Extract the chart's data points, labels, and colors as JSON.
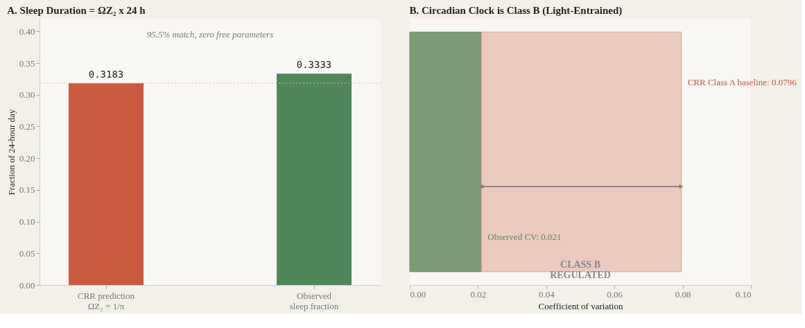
{
  "chart_data": [
    {
      "type": "bar",
      "title": "A.  Sleep Duration = ΩZ₂ x 24 h",
      "ylabel": "Fraction of 24-hour day",
      "categories": [
        "CRR prediction\nΩZ₂ = 1/π",
        "Observed\nsleep fraction"
      ],
      "values": [
        0.3183,
        0.3333
      ],
      "colors": [
        "#c95a3f",
        "#4f865c"
      ],
      "data_labels": true,
      "ylim": [
        0,
        0.42
      ],
      "yticks": [
        {
          "value": 0,
          "label": "0.00"
        },
        0.05,
        {
          "value": 0.1,
          "label": "0.10"
        },
        0.15,
        {
          "value": 0.2,
          "label": "0.20"
        },
        0.25,
        {
          "value": 0.3,
          "label": "0.30"
        },
        0.35,
        {
          "value": 0.4,
          "label": "0.40"
        }
      ],
      "ref_lines": [
        {
          "axis": "y",
          "value": 0.3183,
          "color": "#e8b4a8",
          "line_style": "dotted"
        }
      ],
      "annotations": [
        "95.5% match, zero free parameters"
      ]
    },
    {
      "type": "bar",
      "orientation": "horizontal",
      "stacked": true,
      "title": "B.  Circadian Clock is Class B (Light-Entrained)",
      "xlabel": "Coefficient of variation",
      "categories": [
        null
      ],
      "series": [
        {
          "color": "#7f9a7a",
          "values": [
            0.021
          ]
        },
        {
          "color": "#ebcac1",
          "values": [
            0.0586
          ]
        }
      ],
      "xlim": [
        0,
        0.1
      ],
      "xticks": [
        {
          "value": 0,
          "label": "0.00"
        },
        0.02,
        0.04,
        0.06,
        0.08,
        {
          "value": 0.1,
          "label": "0.10"
        }
      ],
      "tick_labels": "x",
      "annotations": [
        {
          "text": "CRR Class A baseline: 0.0796",
          "x": 0.0796
        },
        {
          "text": "Observed CV: 0.021",
          "x": 0.021
        },
        "CLASS B\nREGULATED"
      ]
    }
  ]
}
